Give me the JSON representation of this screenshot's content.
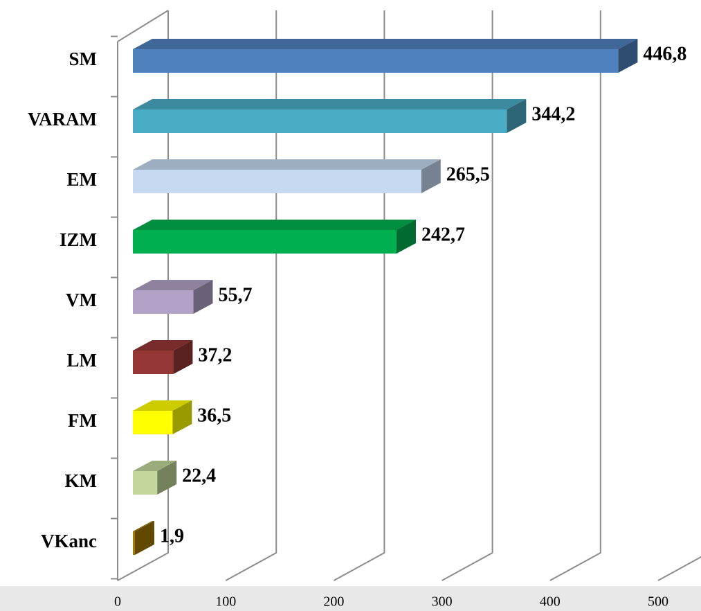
{
  "chart_data": {
    "type": "bar3d_horizontal",
    "categories": [
      "SM",
      "VARAM",
      "EM",
      "IZM",
      "VM",
      "LM",
      "FM",
      "KM",
      "VKanc"
    ],
    "values": [
      446.8,
      344.2,
      265.5,
      242.7,
      55.7,
      37.2,
      36.5,
      22.4,
      1.9
    ],
    "value_labels": [
      "446,8",
      "344,2",
      "265,5",
      "242,7",
      "55,7",
      "37,2",
      "36,5",
      "22,4",
      "1,9"
    ],
    "colors": [
      "#4f81bd",
      "#4bacc6",
      "#c6d9f1",
      "#00b050",
      "#b3a2c7",
      "#953735",
      "#ffff00",
      "#c3d69b",
      "#a27c00"
    ],
    "xlim": [
      0,
      500
    ],
    "xticks": [
      0,
      100,
      200,
      300,
      400,
      500
    ],
    "grid": true
  }
}
